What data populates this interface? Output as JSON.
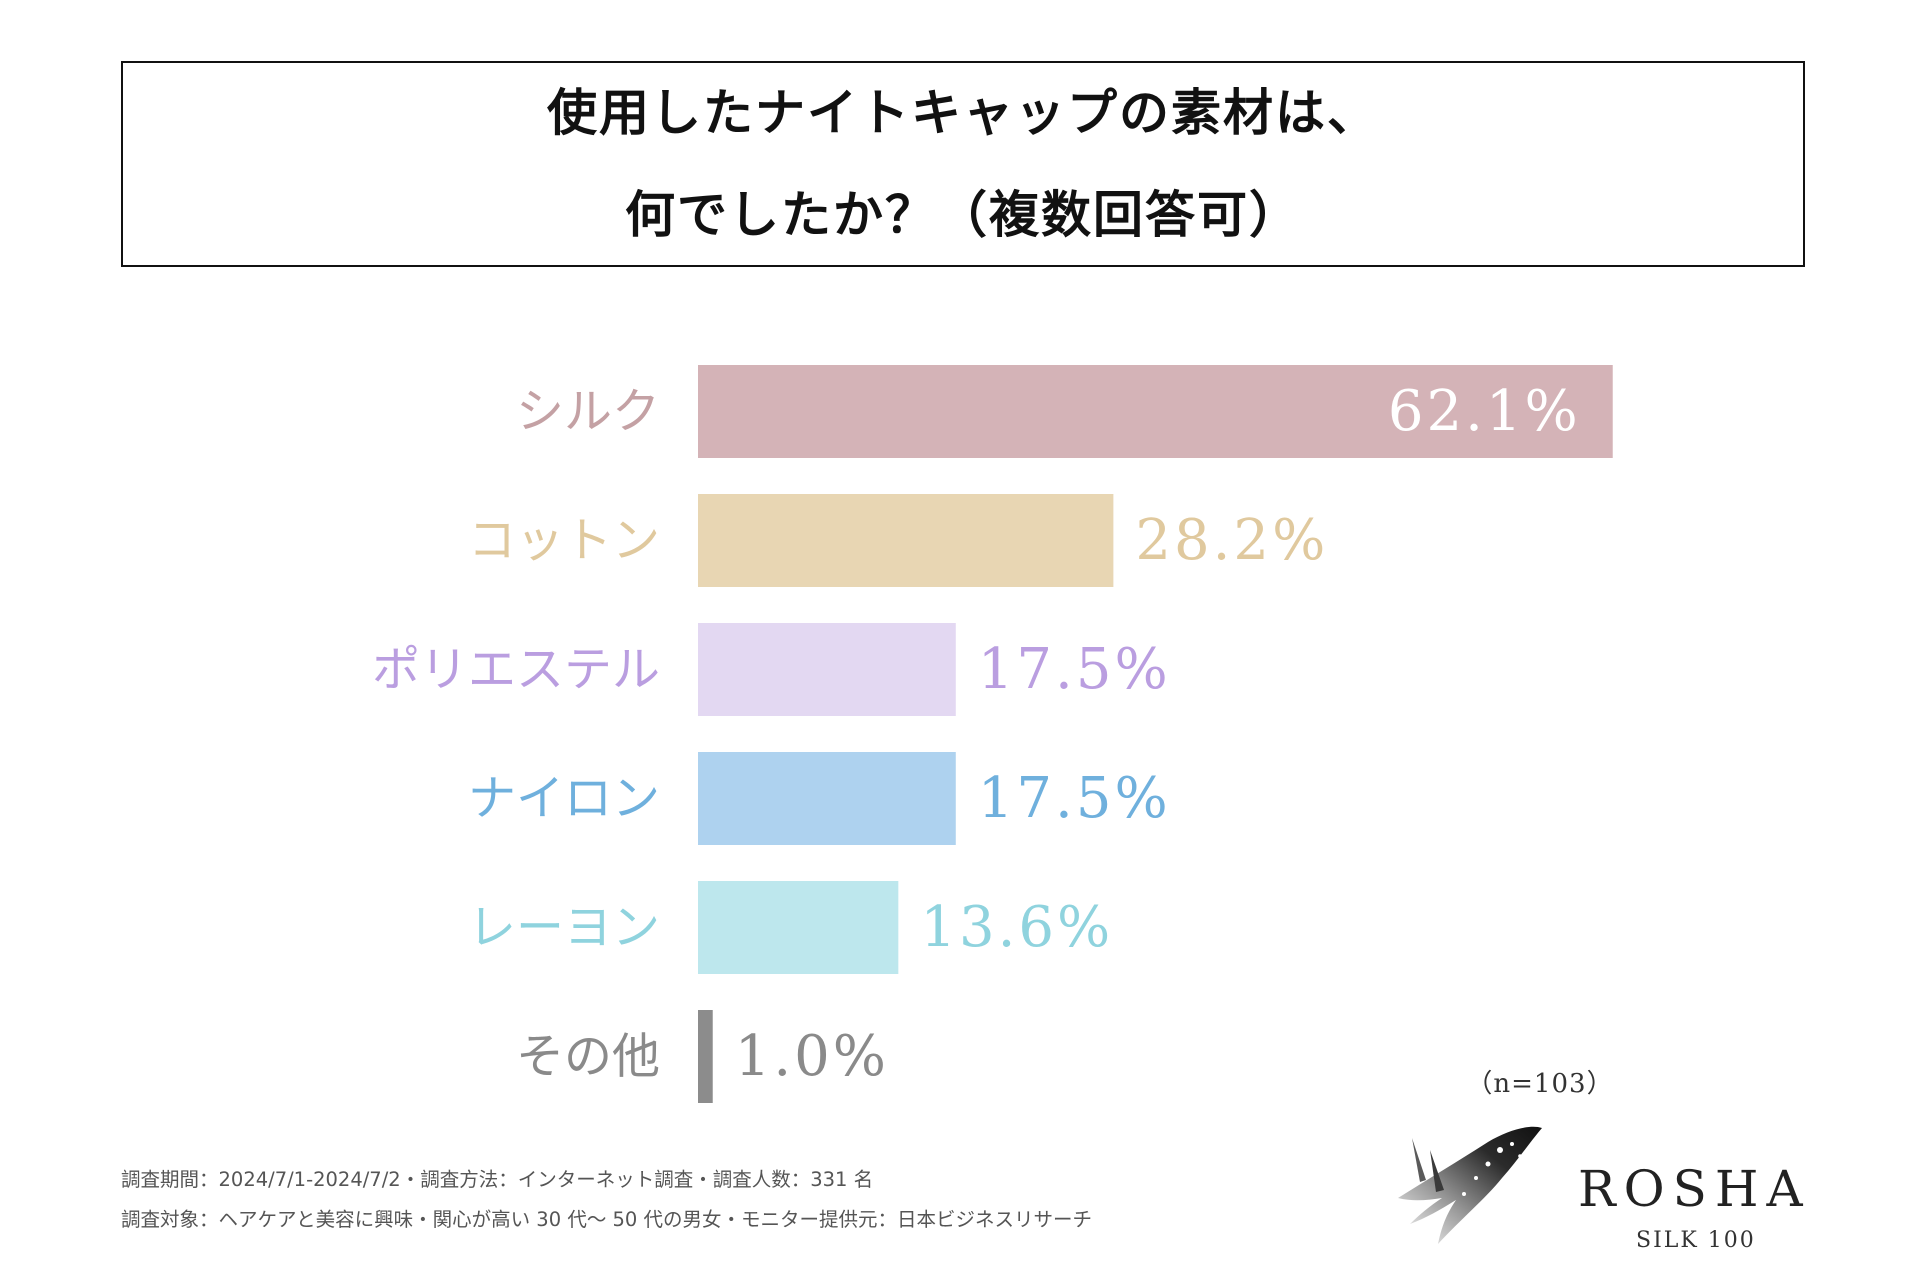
{
  "title": {
    "line1": "使用したナイトキャップの素材は、",
    "line2": "何でしたか？（複数回答可）"
  },
  "chart_data": {
    "type": "bar",
    "orientation": "horizontal",
    "categories": [
      "シルク",
      "コットン",
      "ポリエステル",
      "ナイロン",
      "レーヨン",
      "その他"
    ],
    "values": [
      62.1,
      28.2,
      17.5,
      17.5,
      13.6,
      1.0
    ],
    "value_labels": [
      "62.1%",
      "28.2%",
      "17.5%",
      "17.5%",
      "13.6%",
      "1.0%"
    ],
    "unit": "%",
    "xlim": [
      0,
      100
    ],
    "grid": false,
    "legend": "none",
    "colors": {
      "bars": [
        "#d4b3b7",
        "#e8d6b3",
        "#e3d8f2",
        "#aed2ef",
        "#bde7ed",
        "#8c8c8c"
      ],
      "labels": [
        "#c4a1a4",
        "#e0c99e",
        "#ba9ee0",
        "#6fb0dd",
        "#8fd3de",
        "#8a8a8a"
      ]
    }
  },
  "sample_size": "（n=103）",
  "footnotes": {
    "line1": "調査期間：2024/7/1-2024/7/2・調査方法：インターネット調査・調査人数：331 名",
    "line2": "調査対象：ヘアケアと美容に興味・関心が高い 30 代～ 50 代の男女・モニター提供元：日本ビジネスリサーチ"
  },
  "logo": {
    "name": "ROSHA",
    "subtitle": "SILK 100",
    "icon": "silk-wing-logo-icon"
  }
}
